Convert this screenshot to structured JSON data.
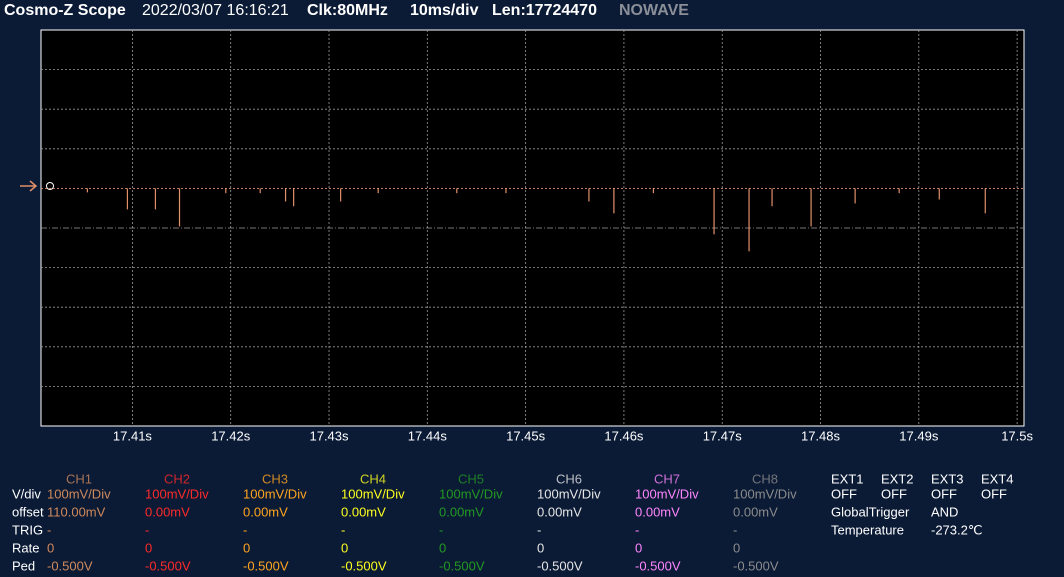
{
  "header": {
    "title": "Cosmo-Z Scope",
    "date": "2022/03/07 16:16:21",
    "clock": "Clk:80MHz",
    "timebase": "10ms/div",
    "length": "Len:17724470",
    "status": "NOWAVE"
  },
  "plot": {
    "color": "#e0906a",
    "xlim": [
      17.4007,
      17.5007
    ],
    "ylim": [
      -6,
      4
    ],
    "x_ticks": [
      {
        "value": 17.41,
        "label": "17.41s"
      },
      {
        "value": 17.42,
        "label": "17.42s"
      },
      {
        "value": 17.43,
        "label": "17.43s"
      },
      {
        "value": 17.44,
        "label": "17.44s"
      },
      {
        "value": 17.45,
        "label": "17.45s"
      },
      {
        "value": 17.46,
        "label": "17.46s"
      },
      {
        "value": 17.47,
        "label": "17.47s"
      },
      {
        "value": 17.48,
        "label": "17.48s"
      },
      {
        "value": 17.49,
        "label": "17.49s"
      },
      {
        "value": 17.5,
        "label": "17.5s"
      }
    ],
    "spikes": {
      "x": [
        17.40542,
        17.40949,
        17.41234,
        17.41479,
        17.4195,
        17.423,
        17.42558,
        17.4264,
        17.43118,
        17.435,
        17.443,
        17.448,
        17.45644,
        17.45898,
        17.463,
        17.46917,
        17.47273,
        17.47507,
        17.47904,
        17.48352,
        17.488,
        17.49208,
        17.49676
      ],
      "y": [
        -0.1,
        -0.53,
        -0.53,
        -0.96,
        -0.12,
        -0.12,
        -0.33,
        -0.45,
        -0.33,
        -0.12,
        -0.12,
        -0.12,
        -0.33,
        -0.63,
        -0.12,
        -1.16,
        -1.59,
        -0.45,
        -0.96,
        -0.38,
        -0.12,
        -0.28,
        -0.63
      ]
    }
  },
  "channels": {
    "row_labels": [
      "V/div",
      "offset",
      "TRIG",
      "Rate",
      "Ped"
    ],
    "columns": [
      {
        "name": "CH1",
        "color": "#d08a5c",
        "vdiv": "100mV/Div",
        "offset": "110.00mV",
        "trig": "-",
        "rate": "0",
        "ped": "-0.500V"
      },
      {
        "name": "CH2",
        "color": "#ff2a2a",
        "vdiv": "100mV/Div",
        "offset": "0.00mV",
        "trig": "-",
        "rate": "0",
        "ped": "-0.500V"
      },
      {
        "name": "CH3",
        "color": "#ffa51e",
        "vdiv": "100mV/Div",
        "offset": "0.00mV",
        "trig": "-",
        "rate": "0",
        "ped": "-0.500V"
      },
      {
        "name": "CH4",
        "color": "#ffff1e",
        "vdiv": "100mV/Div",
        "offset": "0.00mV",
        "trig": "-",
        "rate": "0",
        "ped": "-0.500V"
      },
      {
        "name": "CH5",
        "color": "#229a22",
        "vdiv": "100mV/Div",
        "offset": "0.00mV",
        "trig": "-",
        "rate": "0",
        "ped": "-0.500V"
      },
      {
        "name": "CH6",
        "color": "#e6e6e6",
        "vdiv": "100mV/Div",
        "offset": "0.00mV",
        "trig": "-",
        "rate": "0",
        "ped": "-0.500V"
      },
      {
        "name": "CH7",
        "color": "#ff86ff",
        "vdiv": "100mV/Div",
        "offset": "0.00mV",
        "trig": "-",
        "rate": "0",
        "ped": "-0.500V"
      },
      {
        "name": "CH8",
        "color": "#8c8c8c",
        "vdiv": "100mV/Div",
        "offset": "0.00mV",
        "trig": "-",
        "rate": "0",
        "ped": "-0.500V"
      }
    ]
  },
  "ext": {
    "names": [
      "EXT1",
      "EXT2",
      "EXT3",
      "EXT4"
    ],
    "states": [
      "OFF",
      "OFF",
      "OFF",
      "OFF"
    ],
    "global_trigger_label": "GlobalTrigger",
    "global_trigger": "AND",
    "temperature_label": "Temperature",
    "temperature": "-273.2℃"
  }
}
